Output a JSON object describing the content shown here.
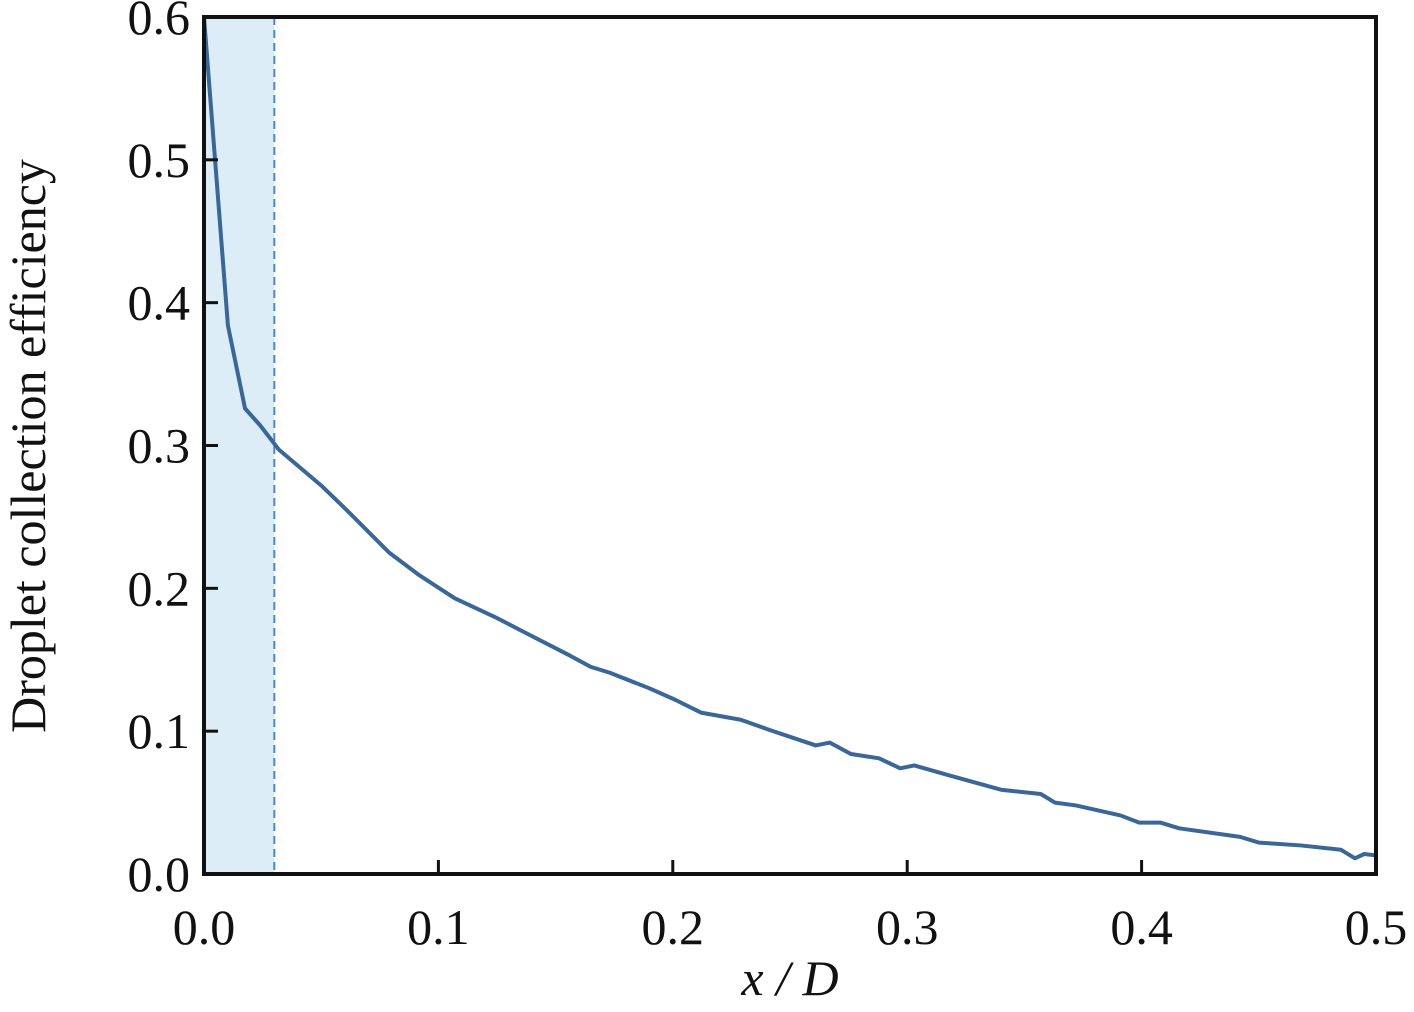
{
  "chart_data": {
    "type": "line",
    "xlabel": "x / D",
    "ylabel": "Droplet collection efficiency",
    "x": [
      0,
      0.0102,
      0.0175,
      0.024,
      0.032,
      0.05,
      0.062,
      0.079,
      0.092,
      0.107,
      0.124,
      0.137,
      0.156,
      0.165,
      0.173,
      0.19,
      0.201,
      0.212,
      0.229,
      0.241,
      0.261,
      0.267,
      0.276,
      0.288,
      0.297,
      0.303,
      0.318,
      0.34,
      0.357,
      0.363,
      0.372,
      0.391,
      0.399,
      0.408,
      0.416,
      0.442,
      0.45,
      0.468,
      0.485,
      0.491,
      0.495,
      0.5
    ],
    "series": [
      {
        "color": "#3a6698",
        "values": [
          0.6,
          0.384,
          0.326,
          0.314,
          0.297,
          0.272,
          0.253,
          0.225,
          0.209,
          0.193,
          0.18,
          0.169,
          0.153,
          0.145,
          0.141,
          0.13,
          0.122,
          0.113,
          0.108,
          0.101,
          0.09,
          0.092,
          0.084,
          0.081,
          0.074,
          0.076,
          0.069,
          0.059,
          0.056,
          0.05,
          0.048,
          0.041,
          0.036,
          0.036,
          0.032,
          0.026,
          0.022,
          0.02,
          0.017,
          0.011,
          0.014,
          0.013
        ]
      }
    ],
    "shaded_region": {
      "xlim": [
        0,
        0.03
      ],
      "color": "#dcedf8",
      "edge_color": "#4a88c8"
    },
    "xlim": [
      0,
      0.5
    ],
    "xticks": [
      {
        "value": 0,
        "label": "0.0"
      },
      0.1,
      0.2,
      0.3,
      0.4,
      0.5
    ],
    "ylim": [
      0,
      0.6
    ],
    "yticks": [
      {
        "value": 0,
        "label": "0.0"
      },
      0.1,
      0.2,
      0.3,
      0.4,
      0.5,
      0.6
    ],
    "grid": false
  }
}
